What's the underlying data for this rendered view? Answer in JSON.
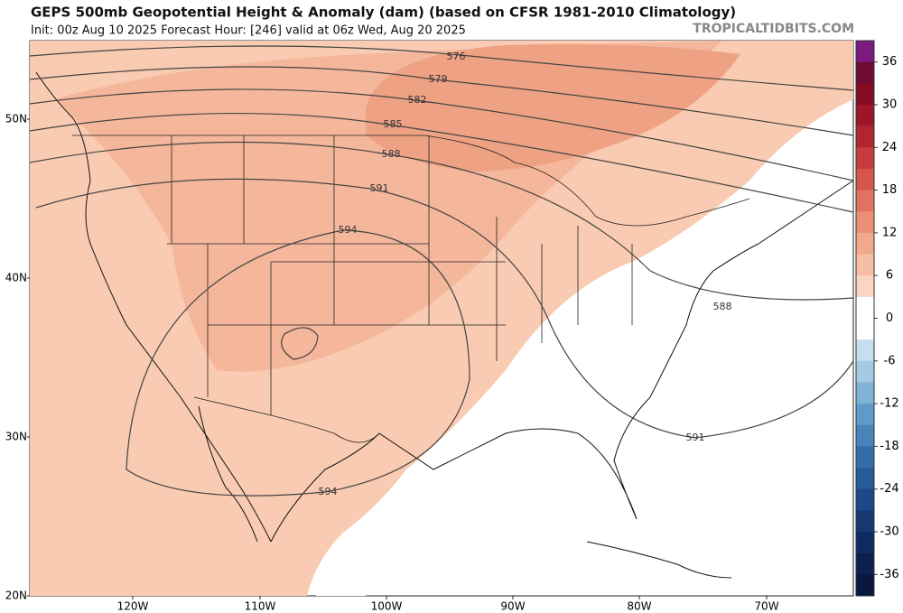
{
  "header": {
    "title": "GEPS 500mb Geopotential Height & Anomaly (dam) (based on CFSR 1981-2010 Climatology)",
    "subtitle": "Init: 00z Aug 10 2025   Forecast Hour: [246]   valid at 06z Wed, Aug 20 2025",
    "brand": "TROPICALTIDBITS.COM"
  },
  "map": {
    "lat_labels": [
      "50N",
      "40N",
      "30N",
      "20N"
    ],
    "lon_labels": [
      "120W",
      "110W",
      "100W",
      "90W",
      "80W",
      "70W"
    ],
    "contour_labels": [
      576,
      579,
      582,
      585,
      588,
      591,
      594,
      588,
      591,
      594
    ]
  },
  "colorbar": {
    "ticks": [
      36,
      30,
      24,
      18,
      12,
      6,
      0,
      -6,
      -12,
      -18,
      -24,
      -30,
      -36
    ],
    "colors": [
      "#7d1a7d",
      "#6e0b33",
      "#840d22",
      "#9c1627",
      "#b2242e",
      "#c63b3b",
      "#d5574c",
      "#e07360",
      "#ea8f74",
      "#f1a88b",
      "#f6bfa4",
      "#fad5c2",
      "#ffffff",
      "#ffffff",
      "#c6dff0",
      "#a3cbe4",
      "#7fb3d6",
      "#5f9bc8",
      "#4684ba",
      "#336eaa",
      "#265a98",
      "#1c4886",
      "#153873",
      "#102b60",
      "#0c204f",
      "#091640"
    ]
  }
}
